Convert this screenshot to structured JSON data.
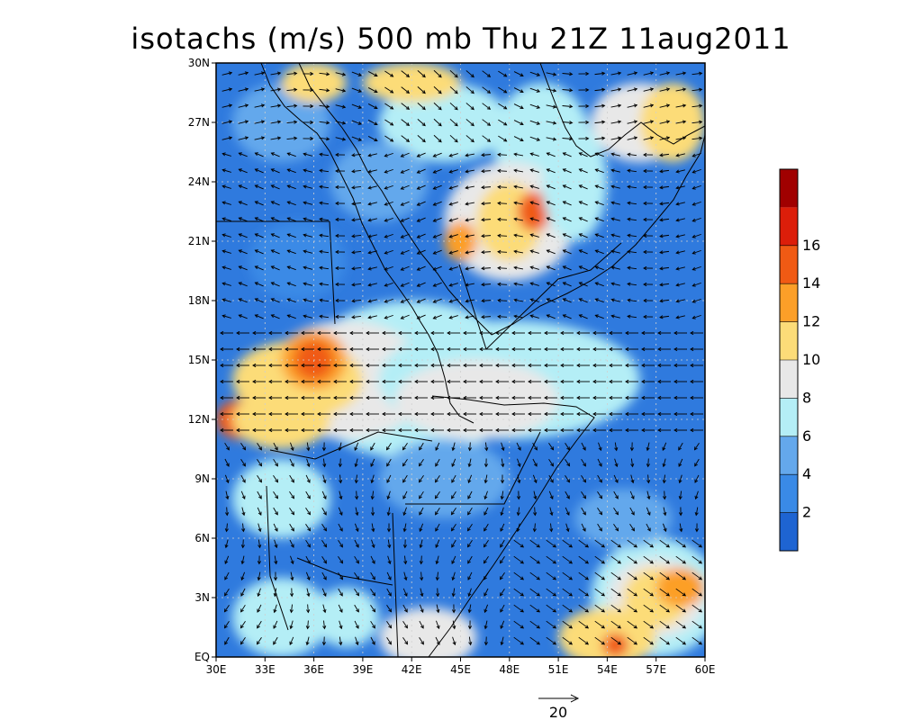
{
  "title": "isotachs (m/s) 500 mb Thu 21Z 11aug2011",
  "map": {
    "lon_range": [
      30,
      60
    ],
    "lat_range": [
      0,
      30
    ],
    "lon_ticks": [
      30,
      33,
      36,
      39,
      42,
      45,
      48,
      51,
      54,
      57,
      60
    ],
    "lon_tick_labels": [
      "30E",
      "33E",
      "36E",
      "39E",
      "42E",
      "45E",
      "48E",
      "51E",
      "54E",
      "57E",
      "60E"
    ],
    "lat_ticks": [
      0,
      3,
      6,
      9,
      12,
      15,
      18,
      21,
      24,
      27,
      30
    ],
    "lat_tick_labels": [
      "EQ",
      "3N",
      "6N",
      "9N",
      "12N",
      "15N",
      "18N",
      "21N",
      "24N",
      "27N",
      "30N"
    ],
    "gridlines": "dotted",
    "field": "isotachs (m/s)",
    "level": "500 mb"
  },
  "colorbar": {
    "levels": [
      0,
      2,
      4,
      6,
      8,
      10,
      12,
      14,
      16,
      18
    ],
    "labels": [
      "2",
      "4",
      "6",
      "8",
      "10",
      "12",
      "14",
      "16"
    ],
    "colors": [
      "#1e64d2",
      "#3a8ae6",
      "#64a8ec",
      "#b4eef6",
      "#e8e8e8",
      "#fcdc78",
      "#fc9f28",
      "#f05a14",
      "#dc1e0a",
      "#a00000"
    ],
    "placement": "right"
  },
  "reference_vector": {
    "label": "20",
    "value": 20
  },
  "colors": {
    "background": "#ffffff",
    "coastline": "#000000",
    "vector": "#000000"
  }
}
